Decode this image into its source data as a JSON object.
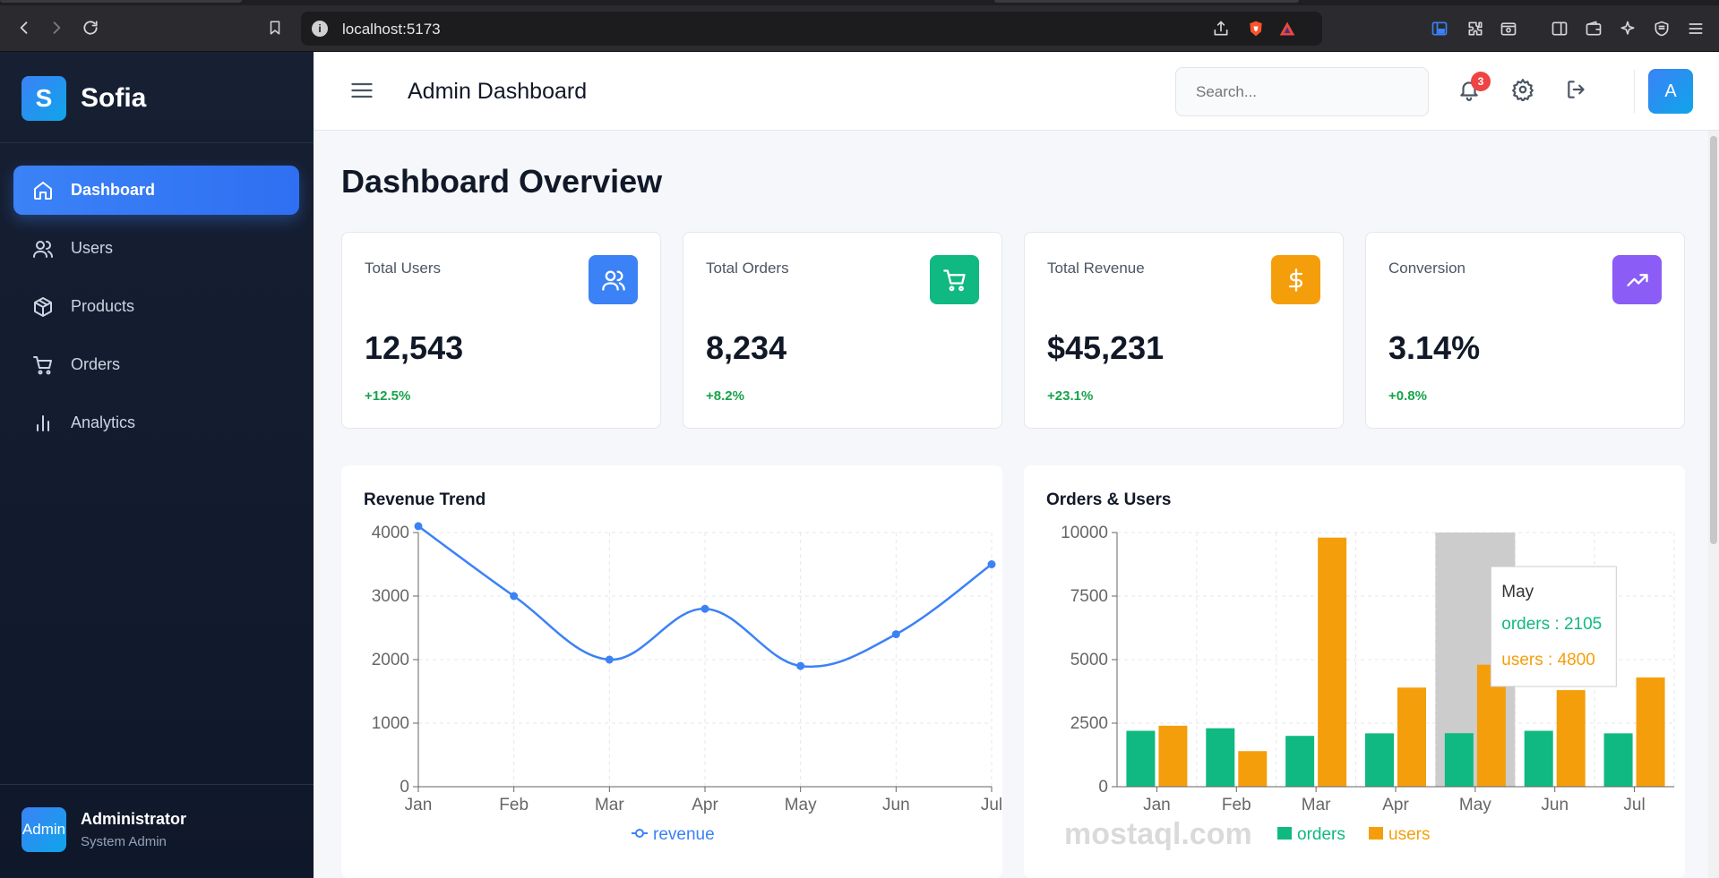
{
  "browser": {
    "url": "localhost:5173"
  },
  "sidebar": {
    "brand_letter": "S",
    "brand_name": "Sofia",
    "items": [
      {
        "label": "Dashboard",
        "icon": "home-icon",
        "active": true
      },
      {
        "label": "Users",
        "icon": "users-icon",
        "active": false
      },
      {
        "label": "Products",
        "icon": "box-icon",
        "active": false
      },
      {
        "label": "Orders",
        "icon": "cart-icon",
        "active": false
      },
      {
        "label": "Analytics",
        "icon": "bar-chart-icon",
        "active": false
      }
    ],
    "user": {
      "avatar_text": "Admin",
      "name": "Administrator",
      "role": "System Admin"
    }
  },
  "header": {
    "title": "Admin Dashboard",
    "search_placeholder": "Search...",
    "notification_count": "3",
    "avatar_letter": "A"
  },
  "main": {
    "title": "Dashboard Overview",
    "stats": [
      {
        "label": "Total Users",
        "value": "12,543",
        "change": "+12.5%",
        "icon": "users-icon",
        "color": "#3b82f6"
      },
      {
        "label": "Total Orders",
        "value": "8,234",
        "change": "+8.2%",
        "icon": "cart-icon",
        "color": "#10b981"
      },
      {
        "label": "Total Revenue",
        "value": "$45,231",
        "change": "+23.1%",
        "icon": "dollar-icon",
        "color": "#f59e0b"
      },
      {
        "label": "Conversion",
        "value": "3.14%",
        "change": "+0.8%",
        "icon": "trending-up-icon",
        "color": "#8b5cf6"
      }
    ]
  },
  "chart_data": [
    {
      "type": "line",
      "title": "Revenue Trend",
      "categories": [
        "Jan",
        "Feb",
        "Mar",
        "Apr",
        "May",
        "Jun",
        "Jul"
      ],
      "series": [
        {
          "name": "revenue",
          "values": [
            4100,
            3000,
            2000,
            2800,
            1900,
            2400,
            3500
          ],
          "color": "#3b82f6"
        }
      ],
      "yticks": [
        0,
        1000,
        2000,
        3000,
        4000
      ],
      "ylim": [
        0,
        4000
      ],
      "grid": true,
      "legend": "bottom"
    },
    {
      "type": "bar",
      "title": "Orders & Users",
      "categories": [
        "Jan",
        "Feb",
        "Mar",
        "Apr",
        "May",
        "Jun",
        "Jul"
      ],
      "series": [
        {
          "name": "orders",
          "values": [
            2200,
            2300,
            2000,
            2100,
            2105,
            2200,
            2100
          ],
          "color": "#10b981"
        },
        {
          "name": "users",
          "values": [
            2400,
            1400,
            9800,
            3900,
            4800,
            3800,
            4300
          ],
          "color": "#f59e0b"
        }
      ],
      "yticks": [
        0,
        2500,
        5000,
        7500,
        10000
      ],
      "ylim": [
        0,
        10000
      ],
      "grid": true,
      "legend": "bottom",
      "tooltip": {
        "category": "May",
        "lines": [
          "orders : 2105",
          "users : 4800"
        ]
      }
    }
  ],
  "watermark": "mostaql.com"
}
